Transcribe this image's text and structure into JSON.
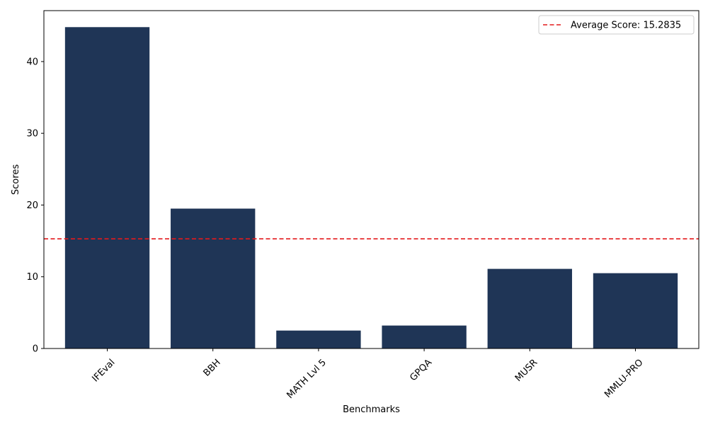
{
  "chart_data": {
    "type": "bar",
    "categories": [
      "IFEval",
      "BBH",
      "MATH Lvl 5",
      "GPQA",
      "MUSR",
      "MMLU-PRO"
    ],
    "values": [
      44.8,
      19.5,
      2.5,
      3.2,
      11.1,
      10.5
    ],
    "xlabel": "Benchmarks",
    "ylabel": "Scores",
    "ylim": [
      0,
      47.1
    ],
    "yticks": [
      0,
      10,
      20,
      30,
      40
    ],
    "bar_color": "#1f3556",
    "average_line": {
      "value": 15.2835,
      "color": "#e41a1c",
      "label": "Average Score: 15.2835"
    },
    "legend_position": "top-right",
    "grid": false
  }
}
